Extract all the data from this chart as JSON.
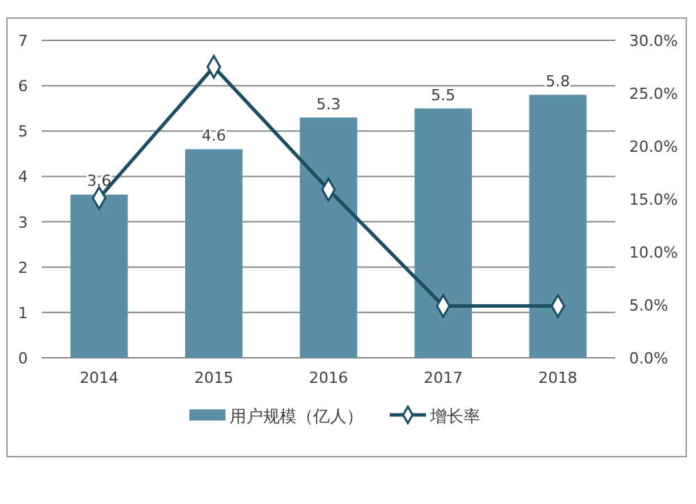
{
  "chart_data": {
    "type": "bar",
    "categories": [
      "2014",
      "2015",
      "2016",
      "2017",
      "2018"
    ],
    "series": [
      {
        "name": "用户规模（亿人）",
        "color": "#5b8fa6",
        "values": [
          3.6,
          4.6,
          5.3,
          5.5,
          5.8
        ],
        "value_labels": [
          "3.6",
          "4.6",
          "5.3",
          "5.5",
          "5.8"
        ]
      },
      {
        "name": "增长率",
        "type": "line",
        "axis": "y2",
        "color": "#1b4f63",
        "marker": "diamond",
        "values": [
          15.1,
          27.5,
          15.9,
          4.9,
          4.9
        ]
      }
    ],
    "ylim": [
      0,
      7
    ],
    "yticks": [
      0,
      1,
      2,
      3,
      4,
      5,
      6,
      7
    ],
    "y2lim": [
      0,
      30
    ],
    "y2ticks": [
      {
        "value": 0,
        "label": "0.0%"
      },
      {
        "value": 5,
        "label": "5.0%"
      },
      {
        "value": 10,
        "label": "10.0%"
      },
      {
        "value": 15,
        "label": "15.0%"
      },
      {
        "value": 20,
        "label": "20.0%"
      },
      {
        "value": 25,
        "label": "25.0%"
      },
      {
        "value": 30,
        "label": "30.0%"
      }
    ],
    "grid": "y",
    "legend": "bottom"
  }
}
